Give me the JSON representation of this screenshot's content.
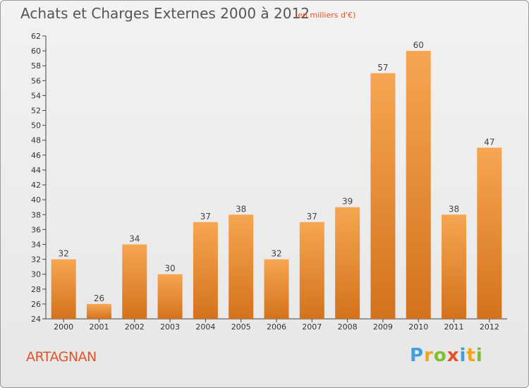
{
  "header": {
    "title": "Achats et Charges Externes 2000 à 2012",
    "subtitle": "(en milliers d'€)"
  },
  "footer": {
    "location": "ARTAGNAN",
    "logo_text": "Proxiti"
  },
  "colors": {
    "bar_top": "#f6a651",
    "bar_bottom": "#d4721c",
    "accent": "#e2532a"
  },
  "chart_data": {
    "type": "bar",
    "title": "Achats et Charges Externes 2000 à 2012",
    "subtitle": "(en milliers d'€)",
    "xlabel": "",
    "ylabel": "",
    "categories": [
      "2000",
      "2001",
      "2002",
      "2003",
      "2004",
      "2005",
      "2006",
      "2007",
      "2008",
      "2009",
      "2010",
      "2011",
      "2012"
    ],
    "values": [
      32,
      26,
      34,
      30,
      37,
      38,
      32,
      37,
      39,
      57,
      60,
      38,
      47
    ],
    "ylim": [
      24,
      62
    ],
    "yticks": [
      24,
      26,
      28,
      30,
      32,
      34,
      36,
      38,
      40,
      42,
      44,
      46,
      48,
      50,
      52,
      54,
      56,
      58,
      60,
      62
    ],
    "grid": false,
    "legend": "none"
  }
}
